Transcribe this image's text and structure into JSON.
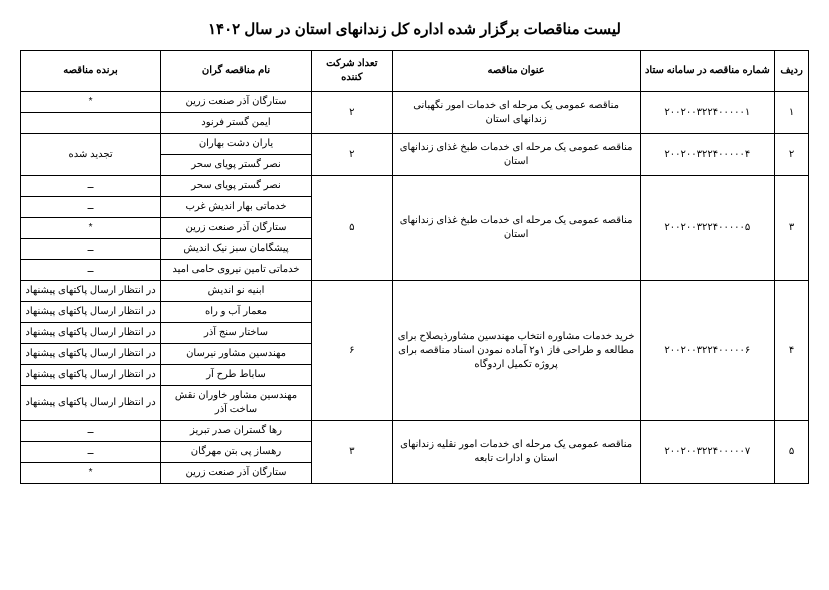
{
  "page_title": "لیست مناقصات برگزار شده اداره کل زندانهای استان در سال ۱۴۰۲",
  "headers": {
    "row": "ردیف",
    "setad_no": "شماره مناقصه در سامانه ستاد",
    "tender_title": "عنوان مناقصه",
    "participant_count": "تعداد شرکت کننده",
    "bidder_name": "نام مناقصه گران",
    "winner": "برنده مناقصه"
  },
  "rows": [
    {
      "row": "۱",
      "setad_no": "۲۰۰۲۰۰۳۲۲۴۰۰۰۰۰۱",
      "title": "مناقصه عمومی یک مرحله ای خدمات امور نگهبانی زندانهای استان",
      "count": "۲",
      "bidders": [
        {
          "name": "ستارگان آذر صنعت زرین",
          "winner": "*"
        },
        {
          "name": "ایمن گستر فرنود",
          "winner": ""
        }
      ]
    },
    {
      "row": "۲",
      "setad_no": "۲۰۰۲۰۰۳۲۲۴۰۰۰۰۰۴",
      "title": "مناقصه عمومی یک مرحله ای خدمات طبخ غذای زندانهای استان",
      "count": "۲",
      "bidders": [
        {
          "name": "یاران دشت بهاران",
          "winner": "تجدید شده"
        },
        {
          "name": "نصر گستر پویای سحر",
          "winner": ""
        }
      ]
    },
    {
      "row": "۳",
      "setad_no": "۲۰۰۲۰۰۳۲۲۴۰۰۰۰۰۵",
      "title": "مناقصه عمومی یک مرحله ای خدمات طبخ غذای زندانهای استان",
      "count": "۵",
      "bidders": [
        {
          "name": "نصر گستر پویای سحر",
          "winner": "ــ"
        },
        {
          "name": "خدماتی بهار اندیش غرب",
          "winner": "ــ"
        },
        {
          "name": "ستارگان آذر صنعت زرین",
          "winner": "*"
        },
        {
          "name": "پیشگامان سبز نیک اندیش",
          "winner": "ــ"
        },
        {
          "name": "خدماتی تامین نیروی حامی امید",
          "winner": "ــ"
        }
      ]
    },
    {
      "row": "۴",
      "setad_no": "۲۰۰۲۰۰۳۲۲۴۰۰۰۰۰۶",
      "title": "خرید خدمات مشاوره انتخاب مهندسین مشاورذیصلاح برای مطالعه و طراحی فاز ۱و۲ آماده نمودن اسناد مناقصه برای پروژه تکمیل اردوگاه",
      "count": "۶",
      "bidders": [
        {
          "name": "ابنیه نو اندیش",
          "winner": "در انتظار ارسال پاکتهای پیشنهاد"
        },
        {
          "name": "معمار آب و راه",
          "winner": "در انتظار ارسال پاکتهای پیشنهاد"
        },
        {
          "name": "ساختار سنج آذر",
          "winner": "در انتظار ارسال پاکتهای پیشنهاد"
        },
        {
          "name": "مهندسین مشاور نیرسان",
          "winner": "در انتظار ارسال پاکتهای پیشنهاد"
        },
        {
          "name": "ساباط طرح آر",
          "winner": "در انتظار ارسال پاکتهای پیشنهاد"
        },
        {
          "name": "مهندسین مشاور خاوران نقش ساخت آذر",
          "winner": "در انتظار ارسال پاکتهای پیشنهاد"
        }
      ]
    },
    {
      "row": "۵",
      "setad_no": "۲۰۰۲۰۰۳۲۲۴۰۰۰۰۰۷",
      "title": "مناقصه عمومی یک مرحله ای خدمات امور نقلیه زندانهای استان و ادارات تابعه",
      "count": "۳",
      "bidders": [
        {
          "name": "رها گستران صدر تبریز",
          "winner": "ــ"
        },
        {
          "name": "رهساز پی بتن مهرگان",
          "winner": "ــ"
        },
        {
          "name": "ستارگان آذر صنعت زرین",
          "winner": "*"
        }
      ]
    }
  ]
}
